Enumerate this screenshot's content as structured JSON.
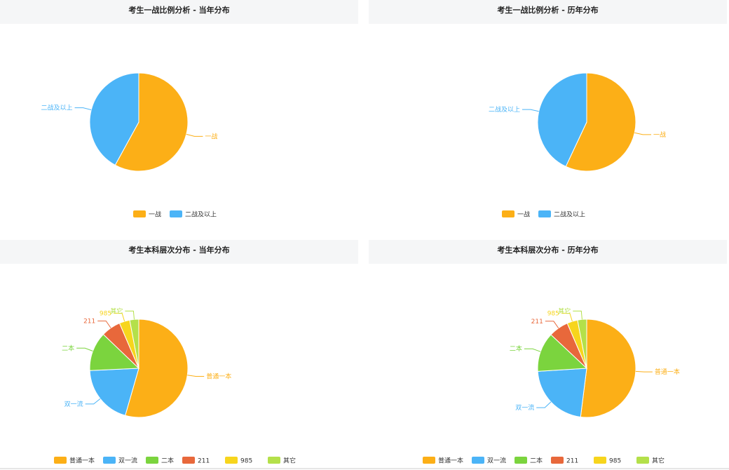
{
  "chart_data": [
    {
      "id": "p1",
      "type": "pie",
      "title": "考生一战比例分析 - 当年分布",
      "categories": [
        "一战",
        "二战及以上"
      ],
      "values": [
        58,
        42
      ],
      "colors": [
        "#fcaf17",
        "#4bb4f7"
      ],
      "legend": "bottom"
    },
    {
      "id": "p2",
      "type": "pie",
      "title": "考生一战比例分析 - 历年分布",
      "categories": [
        "一战",
        "二战及以上"
      ],
      "values": [
        57,
        43
      ],
      "colors": [
        "#fcaf17",
        "#4bb4f7"
      ],
      "legend": "bottom"
    },
    {
      "id": "p3",
      "type": "pie",
      "title": "考生本科层次分布 - 当年分布",
      "categories": [
        "普通一本",
        "双一流",
        "二本",
        "211",
        "985",
        "其它"
      ],
      "values": [
        55,
        20,
        13,
        6.5,
        3.5,
        3
      ],
      "colors": [
        "#fcaf17",
        "#4bb4f7",
        "#7bd43e",
        "#e8683b",
        "#f7d51d",
        "#b4e04a"
      ],
      "legend": "bottom"
    },
    {
      "id": "p4",
      "type": "pie",
      "title": "考生本科层次分布 - 历年分布",
      "categories": [
        "普通一本",
        "双一流",
        "二本",
        "211",
        "985",
        "其它"
      ],
      "values": [
        52,
        22,
        13,
        6.5,
        3.5,
        3
      ],
      "colors": [
        "#fcaf17",
        "#4bb4f7",
        "#7bd43e",
        "#e8683b",
        "#f7d51d",
        "#b4e04a"
      ],
      "legend": "bottom"
    }
  ]
}
